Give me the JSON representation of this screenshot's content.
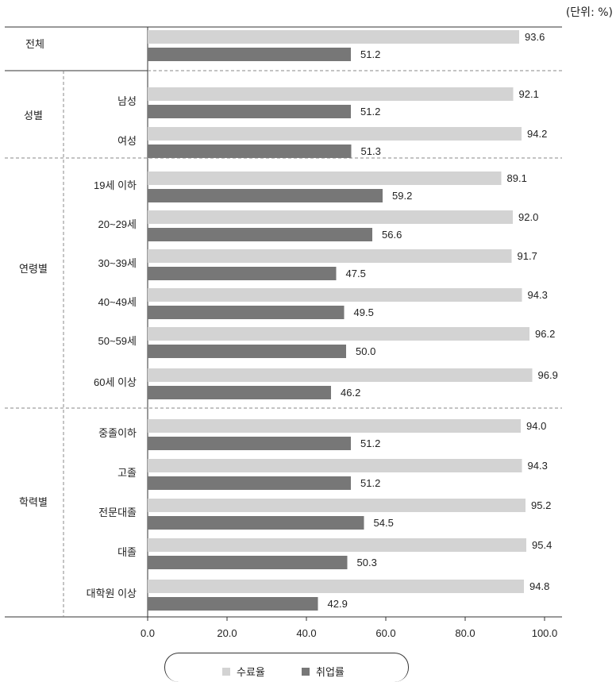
{
  "unit_label": "(단위: %)",
  "legend": [
    {
      "name": "수료율",
      "color": "#d3d3d3"
    },
    {
      "name": "취업률",
      "color": "#777777"
    }
  ],
  "groups": [
    {
      "label": "전체",
      "rows": [
        {
          "label": "",
          "completion": 93.6,
          "employment": 51.2
        }
      ]
    },
    {
      "label": "성별",
      "rows": [
        {
          "label": "남성",
          "completion": 92.1,
          "employment": 51.2
        },
        {
          "label": "여성",
          "completion": 94.2,
          "employment": 51.3
        }
      ]
    },
    {
      "label": "연령별",
      "rows": [
        {
          "label": "19세 이하",
          "completion": 89.1,
          "employment": 59.2
        },
        {
          "label": "20~29세",
          "completion": 92.0,
          "employment": 56.6
        },
        {
          "label": "30~39세",
          "completion": 91.7,
          "employment": 47.5
        },
        {
          "label": "40~49세",
          "completion": 94.3,
          "employment": 49.5
        },
        {
          "label": "50~59세",
          "completion": 96.2,
          "employment": 50.0
        },
        {
          "label": "60세 이상",
          "completion": 96.9,
          "employment": 46.2
        }
      ]
    },
    {
      "label": "학력별",
      "rows": [
        {
          "label": "중졸이하",
          "completion": 94.0,
          "employment": 51.2
        },
        {
          "label": "고졸",
          "completion": 94.3,
          "employment": 51.2
        },
        {
          "label": "전문대졸",
          "completion": 95.2,
          "employment": 54.5
        },
        {
          "label": "대졸",
          "completion": 95.4,
          "employment": 50.3
        },
        {
          "label": "대학원 이상",
          "completion": 94.8,
          "employment": 42.9
        }
      ]
    }
  ],
  "chart_data": {
    "type": "bar",
    "orientation": "horizontal",
    "categories": [
      "전체",
      "남성",
      "여성",
      "19세 이하",
      "20~29세",
      "30~39세",
      "40~49세",
      "50~59세",
      "60세 이상",
      "중졸이하",
      "고졸",
      "전문대졸",
      "대졸",
      "대학원 이상"
    ],
    "series": [
      {
        "name": "수료율",
        "values": [
          93.6,
          92.1,
          94.2,
          89.1,
          92.0,
          91.7,
          94.3,
          96.2,
          96.9,
          94.0,
          94.3,
          95.2,
          95.4,
          94.8
        ]
      },
      {
        "name": "취업률",
        "values": [
          51.2,
          51.2,
          51.3,
          59.2,
          56.6,
          47.5,
          49.5,
          50.0,
          46.2,
          51.2,
          51.2,
          54.5,
          50.3,
          42.9
        ]
      }
    ],
    "xlim": [
      0,
      100
    ],
    "xticks": [
      "0.0",
      "20.0",
      "40.0",
      "60.0",
      "80.0",
      "100.0"
    ],
    "legend_position": "bottom"
  }
}
